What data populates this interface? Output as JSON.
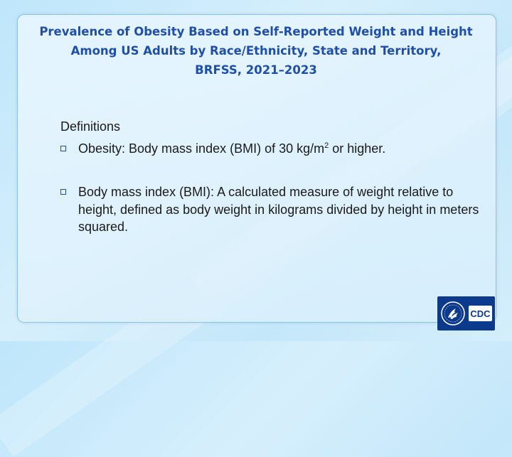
{
  "title": {
    "line1": "Prevalence of Obesity Based on Self-Reported Weight and Height",
    "line2": "Among US Adults by Race/Ethnicity, State and Territory,",
    "line3": "BRFSS, 2021–2023"
  },
  "definitions": {
    "heading": "Definitions",
    "items": [
      {
        "text_before_sup": "Obesity: Body mass index (BMI) of 30 kg/m",
        "sup": "2",
        "text_after_sup": " or higher."
      },
      {
        "text": "Body mass index (BMI): A calculated measure of weight relative to height, defined as body weight in kilograms divided by height in meters squared."
      }
    ]
  },
  "logo": {
    "text": "CDC",
    "icon": "hhs-eagle-icon"
  },
  "colors": {
    "title": "#1f4fa8",
    "bullet": "#1f4fa8",
    "logo_bg": "#0b3a8c"
  }
}
